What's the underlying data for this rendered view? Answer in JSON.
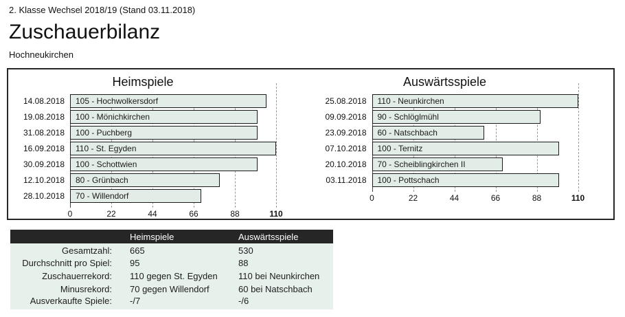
{
  "header": {
    "league_line": "2. Klasse Wechsel 2018/19 (Stand 03.11.2018)",
    "page_title": "Zuschauerbilanz",
    "team_name": "Hochneukirchen"
  },
  "chart_data": [
    {
      "type": "bar",
      "orientation": "horizontal",
      "title": "Heimspiele",
      "xlim": [
        0,
        110
      ],
      "ticks": [
        0,
        22,
        44,
        66,
        88,
        110
      ],
      "grid": "dashed-vertical",
      "rows": [
        {
          "date": "14.08.2018",
          "value": 105,
          "label": "105 - Hochwolkersdorf"
        },
        {
          "date": "19.08.2018",
          "value": 100,
          "label": "100 - Mönichkirchen"
        },
        {
          "date": "31.08.2018",
          "value": 100,
          "label": "100 - Puchberg"
        },
        {
          "date": "16.09.2018",
          "value": 110,
          "label": "110 - St. Egyden"
        },
        {
          "date": "30.09.2018",
          "value": 100,
          "label": "100 - Schottwien"
        },
        {
          "date": "12.10.2018",
          "value": 80,
          "label": "80 - Grünbach"
        },
        {
          "date": "28.10.2018",
          "value": 70,
          "label": "70 - Willendorf"
        }
      ]
    },
    {
      "type": "bar",
      "orientation": "horizontal",
      "title": "Auswärtsspiele",
      "xlim": [
        0,
        110
      ],
      "ticks": [
        0,
        22,
        44,
        66,
        88,
        110
      ],
      "grid": "dashed-vertical",
      "rows": [
        {
          "date": "25.08.2018",
          "value": 110,
          "label": "110 - Neunkirchen"
        },
        {
          "date": "09.09.2018",
          "value": 90,
          "label": "90 - Schlöglmühl"
        },
        {
          "date": "23.09.2018",
          "value": 60,
          "label": "60 - Natschbach"
        },
        {
          "date": "07.10.2018",
          "value": 100,
          "label": "100 - Ternitz"
        },
        {
          "date": "20.10.2018",
          "value": 70,
          "label": "70 - Scheiblingkirchen II"
        },
        {
          "date": "03.11.2018",
          "value": 100,
          "label": "100 - Pottschach"
        }
      ]
    }
  ],
  "summary_table": {
    "columns": [
      "",
      "Heimspiele",
      "Auswärtsspiele"
    ],
    "rows": [
      {
        "label": "Gesamtzahl:",
        "home": "665",
        "away": "530"
      },
      {
        "label": "Durchschnitt pro Spiel:",
        "home": "95",
        "away": "88"
      },
      {
        "label": "Zuschauerrekord:",
        "home": "110 gegen St. Egyden",
        "away": "110 bei Neunkirchen"
      },
      {
        "label": "Minusrekord:",
        "home": "70 gegen Willendorf",
        "away": "60 bei Natschbach"
      },
      {
        "label": "Ausverkaufte Spiele:",
        "home": "-/7",
        "away": "-/6"
      }
    ]
  },
  "colors": {
    "bar_fill": "#e3ede7",
    "bar_border": "#1a1a1a",
    "panel_border": "#262626",
    "grid_line": "#9a9a9a",
    "table_header_bg": "#262626",
    "table_header_text": "#ffffff",
    "table_body_bg": "#e7f1ec"
  }
}
